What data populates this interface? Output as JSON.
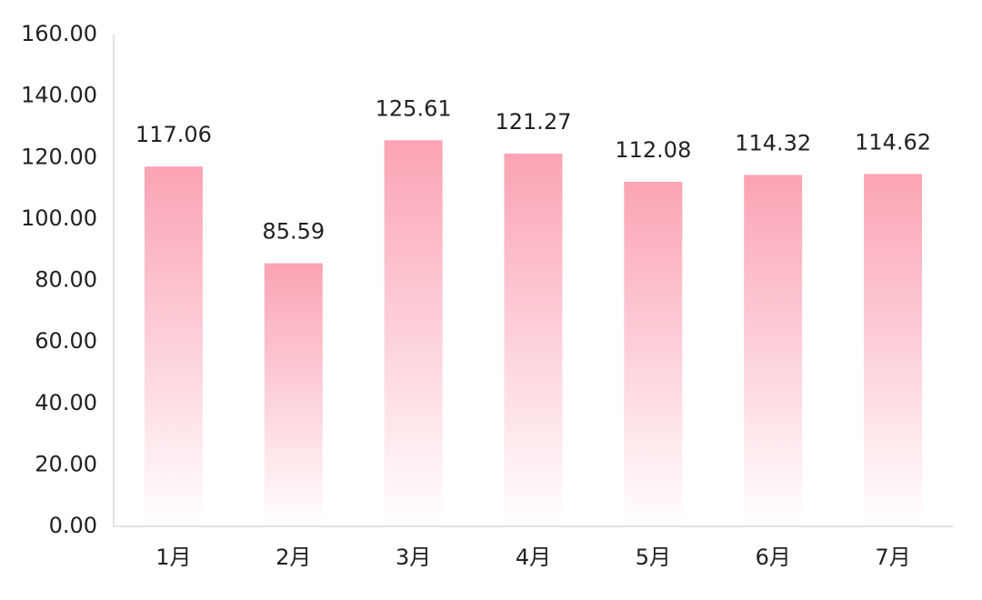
{
  "chart_data": {
    "type": "bar",
    "categories": [
      "1月",
      "2月",
      "3月",
      "4月",
      "5月",
      "6月",
      "7月"
    ],
    "values": [
      117.06,
      85.59,
      125.61,
      121.27,
      112.08,
      114.32,
      114.62
    ],
    "color": "#fba3b4",
    "ylim": [
      0,
      160
    ],
    "yticks": [
      {
        "value": 0,
        "label": "0.00"
      },
      {
        "value": 20,
        "label": "20.00"
      },
      {
        "value": 40,
        "label": "40.00"
      },
      {
        "value": 60,
        "label": "60.00"
      },
      {
        "value": 80,
        "label": "80.00"
      },
      {
        "value": 100,
        "label": "100.00"
      },
      {
        "value": 120,
        "label": "120.00"
      },
      {
        "value": 140,
        "label": "140.00"
      },
      {
        "value": 160,
        "label": "160.00"
      }
    ],
    "grid": false
  }
}
